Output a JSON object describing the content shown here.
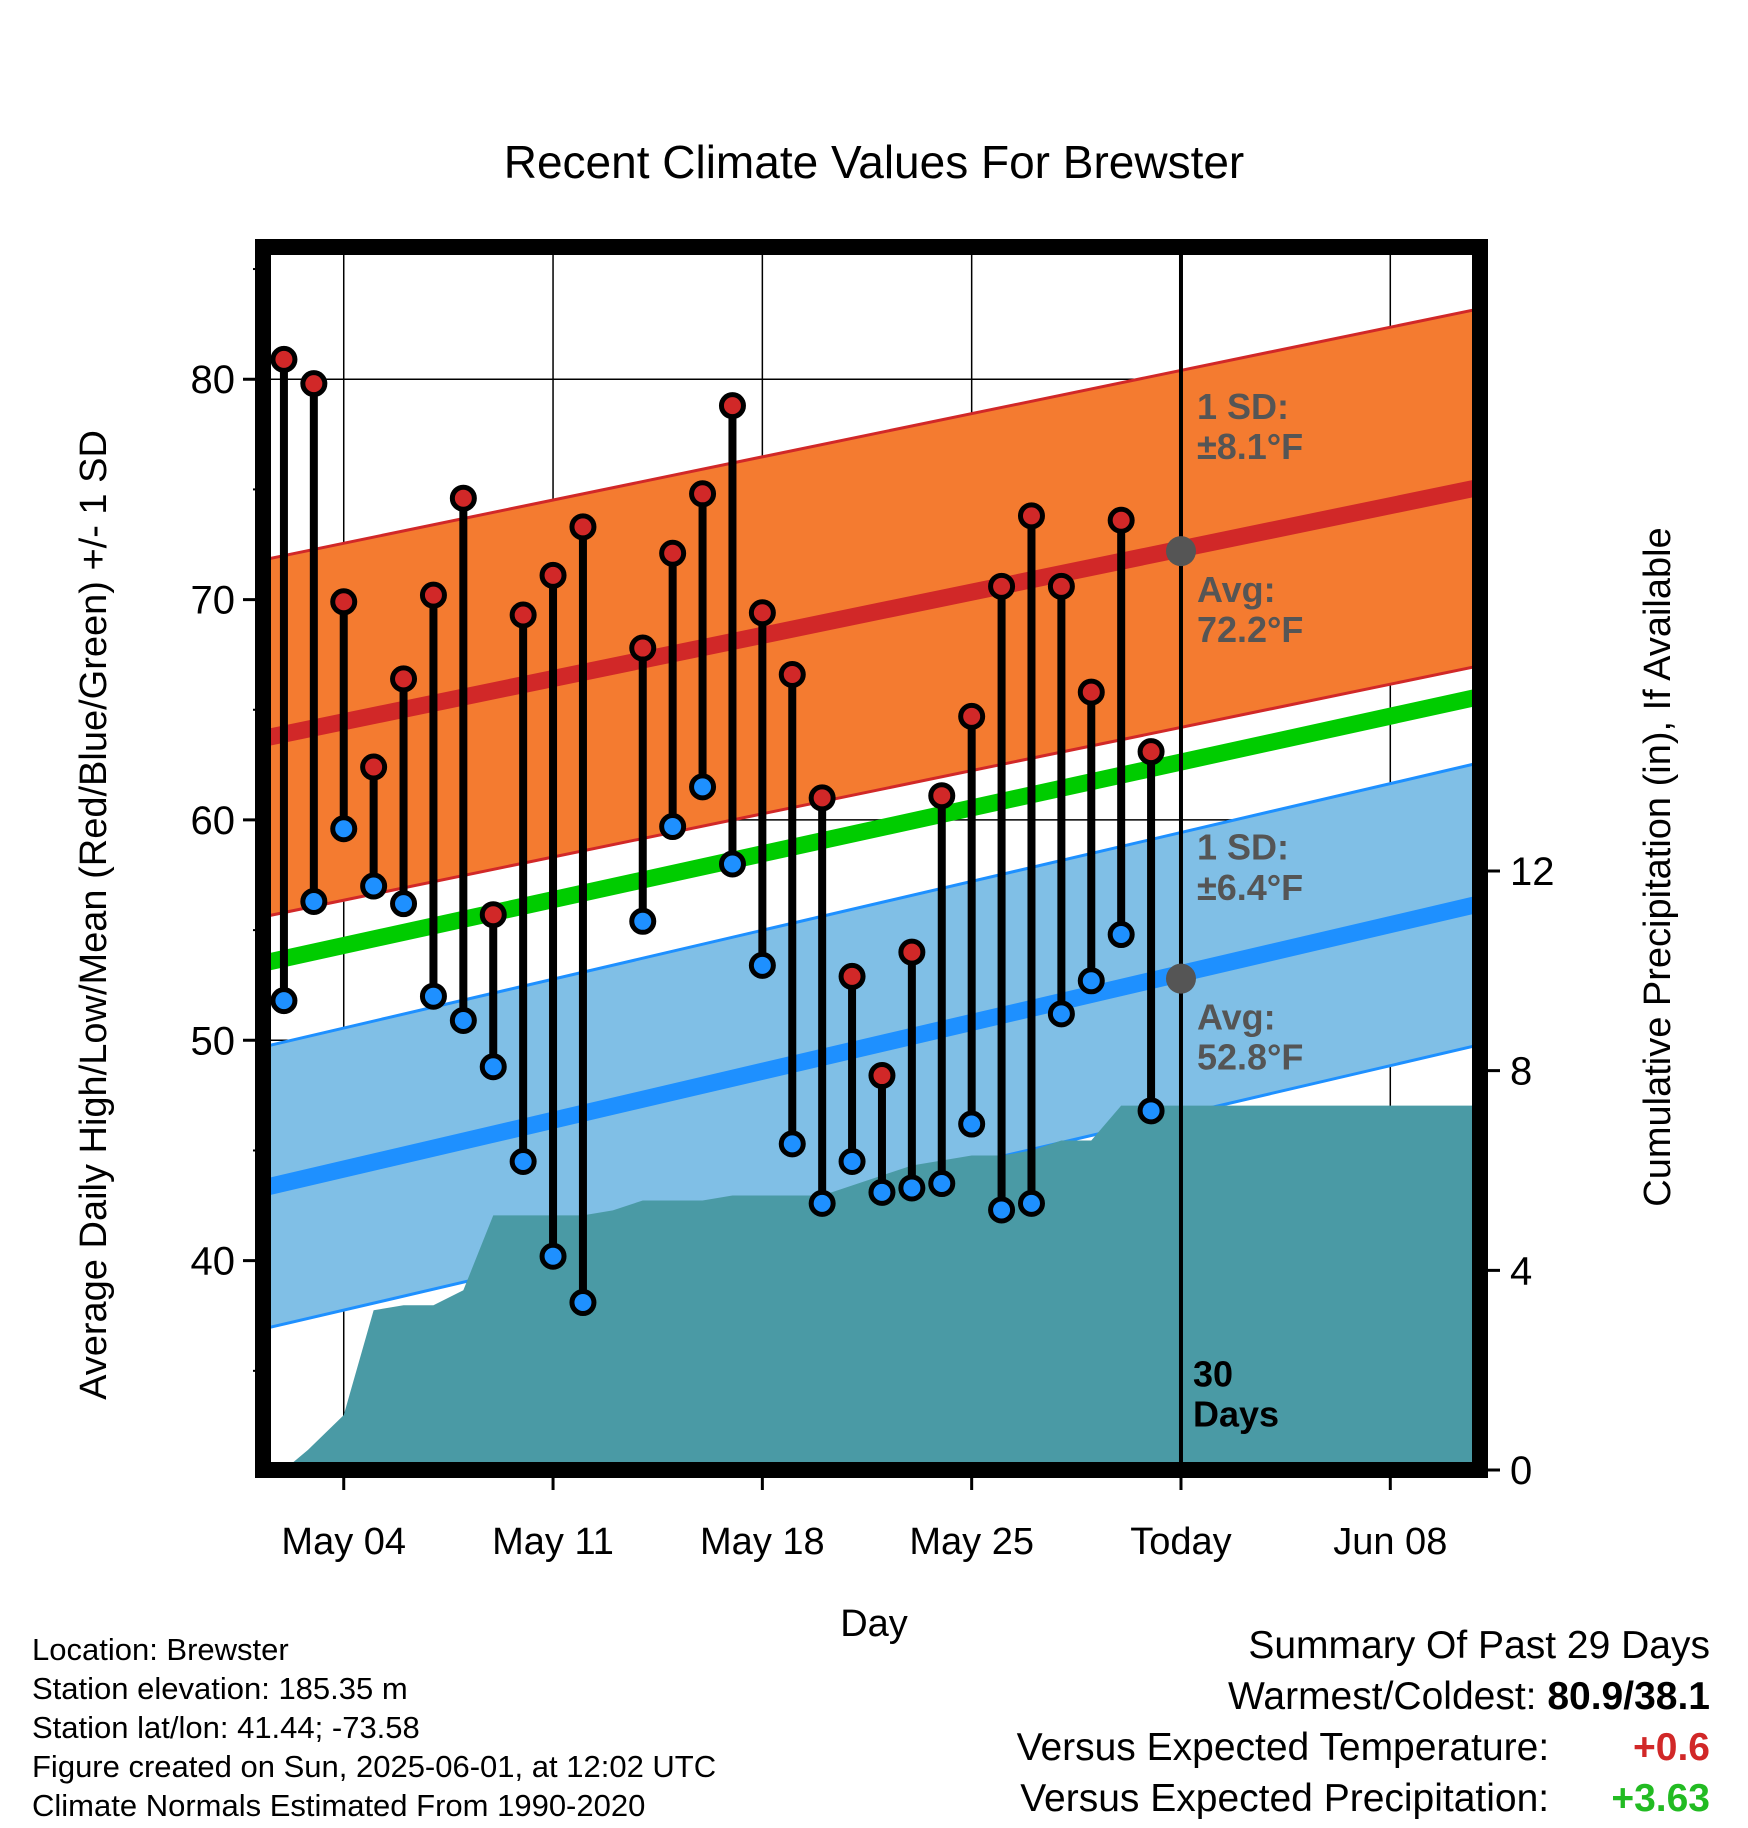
{
  "chart_data": {
    "type": "line",
    "title": "Recent Climate Values For Brewster",
    "xlabel": "Day",
    "ylabel": "Average Daily High/Low/Mean (Red/Blue/Green) +/- 1 SD",
    "y2label": "Cumulative Precipitation (in), If Available",
    "xtick_labels": [
      {
        "day": 4,
        "label": "May 04"
      },
      {
        "day": 11,
        "label": "May 11"
      },
      {
        "day": 18,
        "label": "May 18"
      },
      {
        "day": 25,
        "label": "May 25"
      },
      {
        "day": 32,
        "label": "Today"
      },
      {
        "day": 39,
        "label": "Jun 08"
      }
    ],
    "x_unit_note": "day of May (Today = Jun 01)",
    "xlim": [
      1.3,
      42.0
    ],
    "ylim": [
      30.5,
      86.0
    ],
    "yticks": [
      40,
      50,
      60,
      70,
      80
    ],
    "y2lim": [
      0,
      24.5
    ],
    "y2ticks": [
      0,
      4,
      8,
      12
    ],
    "today_label": "30\nDays",
    "grid": true,
    "days": [
      2,
      3,
      4,
      5,
      6,
      7,
      8,
      9,
      10,
      11,
      12,
      14,
      15,
      16,
      17,
      18,
      19,
      20,
      21,
      22,
      23,
      24,
      25,
      26,
      27,
      28,
      29,
      30,
      31
    ],
    "highs": [
      80.9,
      79.8,
      69.9,
      62.4,
      66.4,
      70.2,
      74.6,
      55.7,
      69.3,
      71.1,
      73.3,
      67.8,
      72.1,
      74.8,
      78.8,
      69.4,
      66.6,
      61.0,
      52.9,
      48.4,
      54.0,
      61.1,
      64.7,
      70.6,
      73.8,
      70.6,
      65.8,
      73.6,
      63.1
    ],
    "lows": [
      51.8,
      56.3,
      59.6,
      57.0,
      56.2,
      52.0,
      50.9,
      48.8,
      44.5,
      40.2,
      38.1,
      55.4,
      59.7,
      61.5,
      58.0,
      53.4,
      45.3,
      42.6,
      44.5,
      43.1,
      43.3,
      43.5,
      46.2,
      42.3,
      42.6,
      51.2,
      52.7,
      54.8,
      46.8
    ],
    "normal_high": {
      "start": 63.7,
      "end": 75.1,
      "sd": 8.1,
      "avg_today": 72.2
    },
    "normal_low": {
      "start": 43.3,
      "end": 56.2,
      "sd": 6.4,
      "avg_today": 52.8
    },
    "normal_mean": {
      "start": 53.5,
      "end": 65.6
    },
    "precip": {
      "x": [
        2.0,
        2.8,
        4.0,
        5.0,
        6.0,
        7.0,
        8.0,
        9.0,
        10.0,
        11.0,
        12.0,
        13.0,
        14.0,
        15.0,
        16.0,
        17.0,
        18.0,
        19.0,
        20.0,
        21.0,
        22.0,
        23.0,
        24.0,
        25.0,
        26.0,
        27.0,
        28.0,
        29.0,
        30.0,
        31.0,
        32.0,
        42.0
      ],
      "y": [
        0.0,
        0.4,
        1.1,
        3.2,
        3.3,
        3.3,
        3.6,
        5.1,
        5.1,
        5.1,
        5.1,
        5.2,
        5.4,
        5.4,
        5.4,
        5.5,
        5.5,
        5.5,
        5.5,
        5.7,
        5.9,
        6.1,
        6.2,
        6.3,
        6.3,
        6.4,
        6.6,
        6.6,
        7.3,
        7.3,
        7.3,
        7.3
      ]
    },
    "annotations": {
      "high_sd": "1 SD:\n±8.1°F",
      "high_avg": "Avg:\n72.2°F",
      "low_sd": "1 SD:\n±6.4°F",
      "low_avg": "Avg:\n52.8°F"
    },
    "colors": {
      "high_band": "#f47b30",
      "high_line": "#d12828",
      "high_edge": "#d12828",
      "low_band": "#80bfe6",
      "low_line": "#1e90ff",
      "low_edge": "#1e90ff",
      "mean_line": "#00cc00",
      "precip_fill": "#4a9aa5",
      "high_dot": "#d12828",
      "low_dot": "#1e90ff",
      "avg_dot": "#555555",
      "annot_text": "#555555"
    }
  },
  "info": {
    "location": "Location: Brewster",
    "elevation": "Station elevation: 185.35 m",
    "latlon": "Station lat/lon: 41.44; -73.58",
    "created": "Figure created on Sun, 2025-06-01, at 12:02 UTC",
    "normals": "Climate Normals Estimated From 1990-2020"
  },
  "summary": {
    "title": "Summary Of Past 29 Days",
    "warm_label": "Warmest/Coldest:",
    "warm_value": "80.9/38.1",
    "temp_label": "Versus Expected Temperature:",
    "temp_value": "+0.6",
    "temp_color": "#d12828",
    "precip_label": "Versus Expected Precipitation:",
    "precip_value": "+3.63",
    "precip_color": "#22bb22"
  }
}
